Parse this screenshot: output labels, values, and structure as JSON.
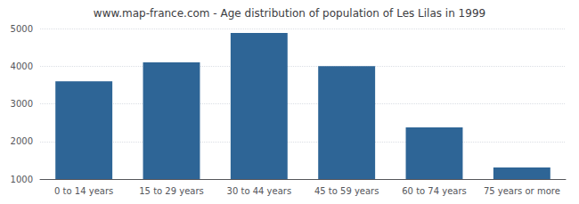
{
  "chart_data": {
    "type": "bar",
    "title": "www.map-france.com - Age distribution of population of Les Lilas in 1999",
    "categories": [
      "0 to 14 years",
      "15 to 29 years",
      "30 to 44 years",
      "45 to 59 years",
      "60 to 74 years",
      "75 years or more"
    ],
    "values": [
      3600,
      4100,
      4880,
      4000,
      2370,
      1310
    ],
    "color": "#2e6596",
    "ylim": [
      1000,
      5000
    ],
    "yticks": [
      1000,
      2000,
      3000,
      4000,
      5000
    ],
    "grid": true
  }
}
